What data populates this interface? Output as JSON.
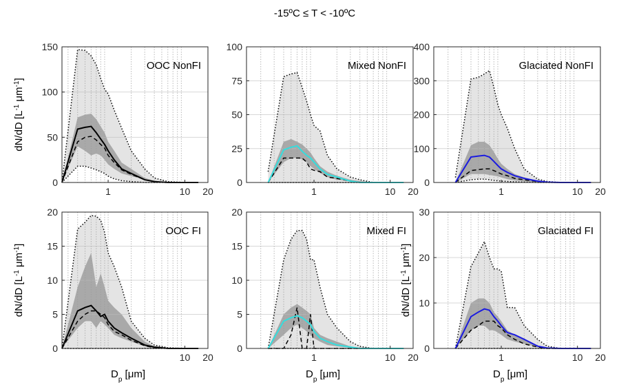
{
  "chart_data": {
    "type": "multi-area",
    "title": "-15ºC ≤ T < -10ºC",
    "panels": [
      {
        "type": "area",
        "label": "OOC NonFI",
        "color": "#000000",
        "xscale": "log",
        "xlim": [
          0.25,
          20
        ],
        "xticks": [
          1,
          10,
          20
        ],
        "xminor": [
          0.3,
          0.4,
          0.5,
          0.6,
          0.7,
          0.8,
          0.9,
          2,
          3,
          4,
          5,
          6,
          7,
          8,
          9
        ],
        "ylim": [
          0,
          150
        ],
        "yticks": [
          0,
          50,
          100,
          150
        ],
        "grid": true,
        "ylabel": [
          "dN/dD [L",
          "-1",
          " μm",
          "-1",
          "]"
        ],
        "x": [
          0.25,
          0.4,
          0.5,
          0.6,
          0.7,
          0.8,
          0.9,
          1,
          1.2,
          1.5,
          2,
          3,
          4,
          6,
          10,
          15
        ],
        "max": [
          0,
          147,
          146,
          140,
          130,
          115,
          103,
          98,
          80,
          60,
          35,
          15,
          5,
          1,
          0,
          0
        ],
        "min": [
          0,
          18,
          18,
          16,
          14,
          12,
          10,
          7,
          4,
          2,
          1,
          0,
          0,
          0,
          0,
          0
        ],
        "q75": [
          0,
          72,
          75,
          76,
          70,
          62,
          55,
          45,
          35,
          22,
          15,
          5,
          2,
          0,
          0,
          0
        ],
        "q25": [
          0,
          40,
          35,
          30,
          32,
          30,
          25,
          20,
          15,
          10,
          7,
          3,
          1,
          0,
          0,
          0
        ],
        "median": [
          0,
          59,
          61,
          62,
          55,
          48,
          42,
          35,
          25,
          15,
          10,
          3,
          1,
          0,
          0,
          0
        ],
        "mean": [
          0,
          45,
          50,
          51,
          47,
          42,
          38,
          30,
          22,
          14,
          9,
          3,
          1,
          0,
          0,
          0
        ]
      },
      {
        "type": "area",
        "label": "Mixed NonFI",
        "color": "#33dede",
        "xscale": "log",
        "xlim": [
          0.13,
          20
        ],
        "xticks": [
          1,
          10,
          20
        ],
        "xminor": [
          0.2,
          0.3,
          0.4,
          0.5,
          0.6,
          0.7,
          0.8,
          0.9,
          2,
          3,
          4,
          5,
          6,
          7,
          8,
          9
        ],
        "ylim": [
          0,
          100
        ],
        "yticks": [
          0,
          25,
          50,
          75,
          100
        ],
        "grid": true,
        "x": [
          0.25,
          0.4,
          0.5,
          0.6,
          0.7,
          0.8,
          0.9,
          1,
          1.2,
          1.5,
          2,
          3,
          4,
          6,
          10,
          15
        ],
        "max": [
          8,
          78,
          80,
          81,
          70,
          60,
          50,
          42,
          38,
          20,
          10,
          4,
          2,
          0,
          0,
          0
        ],
        "min": [
          0,
          0,
          0,
          0,
          0,
          0,
          0,
          0,
          0,
          0,
          0,
          0,
          0,
          0,
          0,
          0
        ],
        "q75": [
          0,
          30,
          32,
          30,
          28,
          25,
          22,
          18,
          12,
          8,
          5,
          2,
          1,
          0,
          0,
          0
        ],
        "q25": [
          0,
          15,
          18,
          18,
          17,
          15,
          12,
          10,
          7,
          4,
          2,
          1,
          0,
          0,
          0,
          0
        ],
        "median": [
          0,
          24,
          26,
          27,
          23,
          20,
          18,
          15,
          10,
          6,
          4,
          1,
          0,
          0,
          0,
          0
        ],
        "mean": [
          0,
          18,
          18,
          18,
          18,
          15,
          10,
          9,
          8,
          4,
          3,
          1,
          0,
          0,
          0,
          0
        ]
      },
      {
        "type": "area",
        "label": "Glaciated NonFI",
        "color": "#1a1ae0",
        "xscale": "log",
        "xlim": [
          0.13,
          20
        ],
        "xticks": [
          1,
          10,
          20
        ],
        "xminor": [
          0.2,
          0.3,
          0.4,
          0.5,
          0.6,
          0.7,
          0.8,
          0.9,
          2,
          3,
          4,
          5,
          6,
          7,
          8,
          9
        ],
        "ylim": [
          0,
          400
        ],
        "yticks": [
          0,
          100,
          200,
          300,
          400
        ],
        "grid": true,
        "x": [
          0.25,
          0.4,
          0.5,
          0.6,
          0.7,
          0.8,
          0.9,
          1,
          1.2,
          1.5,
          2,
          3,
          4,
          6,
          10,
          15
        ],
        "max": [
          15,
          305,
          310,
          320,
          330,
          280,
          230,
          200,
          160,
          100,
          40,
          10,
          3,
          0,
          0,
          0
        ],
        "min": [
          0,
          8,
          10,
          10,
          8,
          6,
          5,
          4,
          3,
          2,
          1,
          0,
          0,
          0,
          0,
          0
        ],
        "q75": [
          0,
          110,
          120,
          120,
          110,
          90,
          70,
          55,
          40,
          25,
          15,
          5,
          2,
          0,
          0,
          0
        ],
        "q25": [
          0,
          25,
          25,
          25,
          22,
          20,
          18,
          15,
          10,
          6,
          3,
          1,
          0,
          0,
          0,
          0
        ],
        "median": [
          0,
          75,
          78,
          80,
          75,
          62,
          50,
          40,
          30,
          20,
          12,
          4,
          1,
          0,
          0,
          0
        ],
        "mean": [
          0,
          35,
          38,
          40,
          40,
          35,
          30,
          25,
          20,
          12,
          8,
          3,
          1,
          0,
          0,
          0
        ]
      },
      {
        "type": "area",
        "label": "OOC FI",
        "color": "#000000",
        "xscale": "log",
        "xlim": [
          0.25,
          20
        ],
        "xticks": [
          10,
          20
        ],
        "xminor": [
          0.3,
          0.4,
          0.5,
          0.6,
          0.7,
          0.8,
          0.9,
          1,
          2,
          3,
          4,
          5,
          6,
          7,
          8,
          9
        ],
        "ylim": [
          0,
          20
        ],
        "yticks": [
          0,
          5,
          10,
          15,
          20
        ],
        "grid": true,
        "ylabel": [
          "dN/dD [L",
          "-1",
          " μm",
          "-1",
          "]"
        ],
        "xlabel": [
          "D",
          "p",
          " [μm]"
        ],
        "x": [
          0.25,
          0.4,
          0.5,
          0.6,
          0.7,
          0.8,
          0.9,
          1,
          1.2,
          1.5,
          2,
          3,
          4,
          6,
          10,
          15
        ],
        "max": [
          0,
          17.5,
          18.5,
          19.5,
          19.4,
          18.8,
          17,
          14,
          12,
          9,
          4,
          1.5,
          0.5,
          0.1,
          0,
          0
        ],
        "min": [
          0,
          0,
          0,
          0,
          0,
          0,
          0,
          0,
          0,
          0,
          0,
          0,
          0,
          0,
          0,
          0
        ],
        "q75": [
          0,
          9,
          12,
          14,
          9,
          11,
          9,
          7,
          6,
          5,
          3,
          1,
          0.3,
          0,
          0,
          0
        ],
        "q25": [
          0,
          3,
          4,
          4,
          3,
          4,
          3.5,
          3,
          2,
          1.5,
          1,
          0.3,
          0,
          0,
          0,
          0
        ],
        "median": [
          0,
          5.5,
          6,
          6.3,
          5.5,
          4.7,
          5,
          4,
          3,
          2.3,
          1.5,
          0.5,
          0.2,
          0,
          0,
          0
        ],
        "mean": [
          0,
          4,
          5,
          5.5,
          5.5,
          5,
          4.5,
          3.5,
          2.5,
          2,
          1.2,
          0.4,
          0.1,
          0,
          0,
          0
        ]
      },
      {
        "type": "area",
        "label": "Mixed FI",
        "color": "#33dede",
        "xscale": "log",
        "xlim": [
          0.13,
          20
        ],
        "xticks": [
          1,
          10,
          20
        ],
        "xminor": [
          0.2,
          0.3,
          0.4,
          0.5,
          0.6,
          0.7,
          0.8,
          0.9,
          2,
          3,
          4,
          5,
          6,
          7,
          8,
          9
        ],
        "ylim": [
          0,
          20
        ],
        "yticks": [
          0,
          5,
          10,
          15,
          20
        ],
        "grid": true,
        "xlabel": [
          "D",
          "p",
          " [μm]"
        ],
        "x": [
          0.25,
          0.4,
          0.5,
          0.6,
          0.7,
          0.8,
          0.9,
          1,
          1.2,
          1.5,
          2,
          3,
          4,
          6,
          10,
          15
        ],
        "max": [
          0,
          13,
          16,
          17.3,
          17.3,
          16,
          13,
          13,
          9,
          5,
          3,
          1,
          0.3,
          0,
          0,
          0
        ],
        "min": [
          0,
          0,
          0,
          0,
          0,
          0,
          0,
          0,
          0,
          0,
          0,
          0,
          0,
          0,
          0,
          0
        ],
        "q75": [
          0,
          5,
          6,
          6.5,
          6,
          5.5,
          5,
          3,
          2,
          1.5,
          1,
          0.3,
          0,
          0,
          0,
          0
        ],
        "q25": [
          0,
          2,
          3,
          3.5,
          3,
          2.5,
          2,
          1.5,
          1,
          0.5,
          0.3,
          0.1,
          0,
          0,
          0,
          0
        ],
        "median": [
          0,
          4,
          4.5,
          4.8,
          4.5,
          4,
          3.5,
          2.5,
          1.5,
          1,
          0.5,
          0.2,
          0,
          0,
          0,
          0
        ],
        "mean": [
          0,
          0,
          2,
          6,
          0,
          0,
          5,
          0,
          0,
          0,
          0,
          0,
          0,
          0,
          0,
          0
        ]
      },
      {
        "type": "area",
        "label": "Glaciated FI",
        "color": "#1a1ae0",
        "xscale": "log",
        "xlim": [
          0.13,
          20
        ],
        "xticks": [
          1,
          10,
          20
        ],
        "xminor": [
          0.2,
          0.3,
          0.4,
          0.5,
          0.6,
          0.7,
          0.8,
          0.9,
          2,
          3,
          4,
          5,
          6,
          7,
          8,
          9
        ],
        "ylim": [
          0,
          30
        ],
        "yticks": [
          0,
          10,
          20,
          30
        ],
        "grid": true,
        "ylabel": [
          "dN/dD [L",
          "-1",
          " μm",
          "-1",
          "]"
        ],
        "xlabel": [
          "D",
          "p",
          " [μm]"
        ],
        "x": [
          0.25,
          0.4,
          0.5,
          0.6,
          0.7,
          0.8,
          0.9,
          1,
          1.2,
          1.5,
          2,
          3,
          4,
          6,
          10,
          15
        ],
        "max": [
          0,
          18,
          21,
          23.5,
          20,
          17.5,
          17.5,
          17,
          9,
          9,
          5,
          2,
          0.5,
          0,
          0,
          0
        ],
        "min": [
          0,
          0,
          0,
          0,
          0,
          0,
          0,
          0,
          0,
          0,
          0,
          0,
          0,
          0,
          0,
          0
        ],
        "q75": [
          0,
          10,
          11,
          11,
          10,
          8,
          7,
          6,
          4,
          3,
          2,
          0.5,
          0.2,
          0,
          0,
          0
        ],
        "q25": [
          0,
          4,
          5,
          5,
          4,
          4,
          3.5,
          3,
          2,
          1.5,
          1,
          0.3,
          0,
          0,
          0,
          0
        ],
        "median": [
          0,
          7,
          8,
          8.7,
          8.4,
          7,
          6,
          5,
          3.5,
          3,
          2,
          0.5,
          0.1,
          0,
          0,
          0
        ],
        "mean": [
          0,
          4,
          5,
          6,
          6,
          6,
          5,
          4.5,
          3,
          2,
          1,
          0.3,
          0,
          0,
          0,
          0
        ]
      }
    ]
  }
}
